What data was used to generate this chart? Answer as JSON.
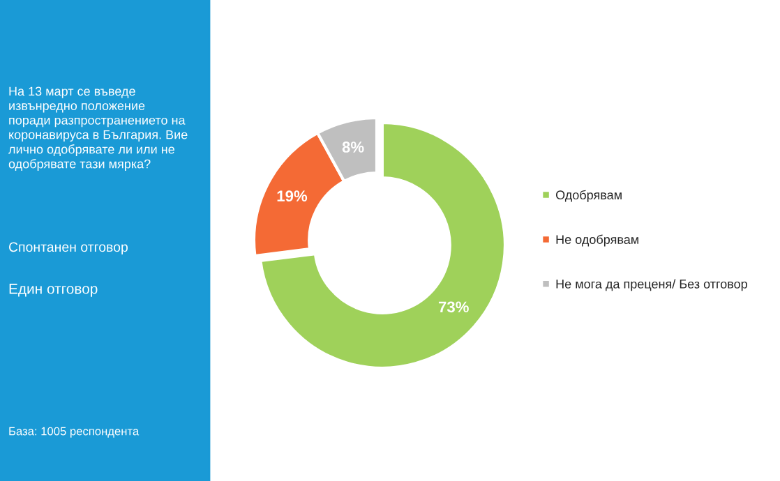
{
  "chart_data": {
    "type": "donut",
    "title": "На 13 март се въведе\nизвънредно положение\nпоради разпространението на\nкоронавируса в България. Вие\nлично одобрявате ли или не\nодобрявате тази мярка?",
    "annotations": [
      "Спонтанен отговор",
      "Един отговор",
      "База: 1005 респондента"
    ],
    "categories": [
      "Одобрявам",
      "Не одобрявам",
      "Не мога да преценя/ Без отговор"
    ],
    "values": [
      73,
      19,
      8
    ],
    "colors": [
      "#9fd15a",
      "#f46a35",
      "#bfbfbf"
    ],
    "value_labels": [
      "73%",
      "19%",
      "8%"
    ],
    "legend": "right"
  }
}
